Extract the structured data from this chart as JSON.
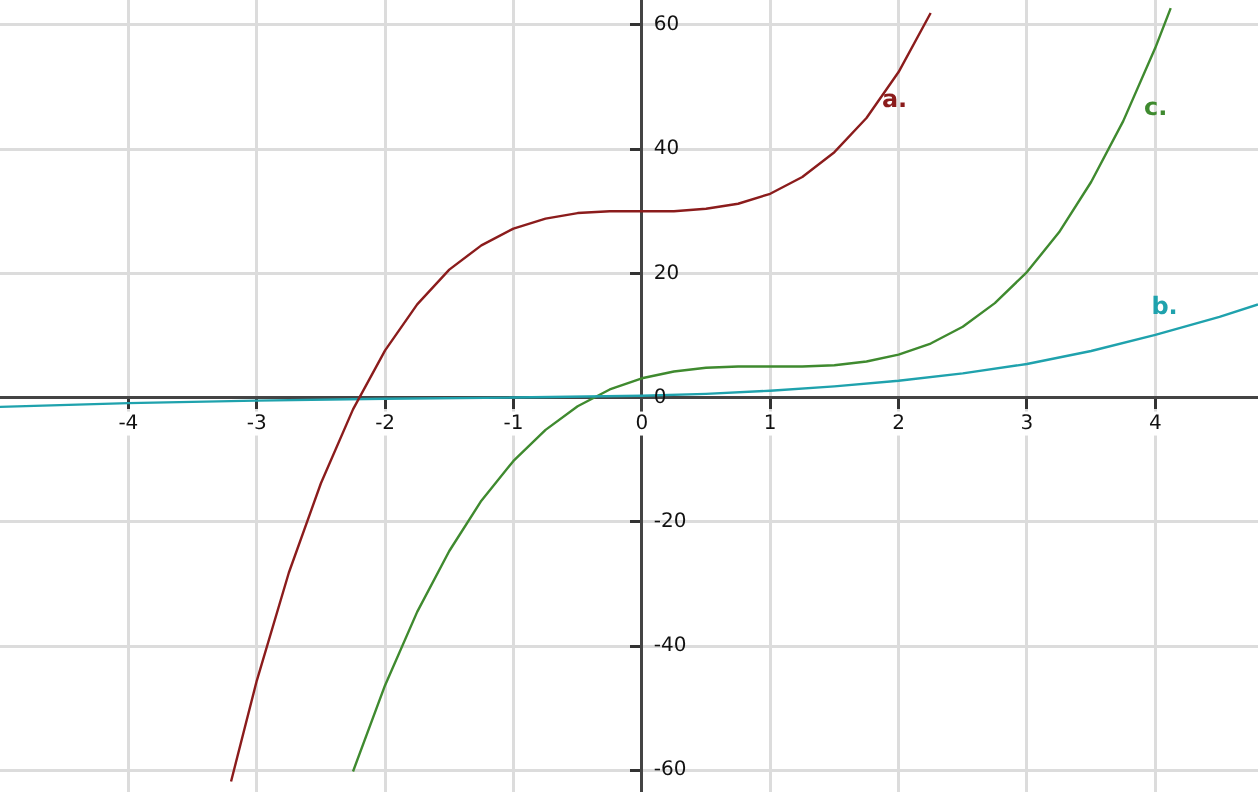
{
  "chart_data": {
    "type": "line",
    "xlim": [
      -5,
      4.8
    ],
    "ylim": [
      -63.5,
      64
    ],
    "xticks": [
      -4,
      -3,
      -2,
      -1,
      0,
      1,
      2,
      3,
      4
    ],
    "yticks": [
      -60,
      -40,
      -20,
      0,
      20,
      40,
      60
    ],
    "grid": true,
    "legend": false,
    "marker": "none",
    "line_style": "solid",
    "series": [
      {
        "name": "a.",
        "color": "#8b1c1c",
        "x": [
          -3.2,
          -3,
          -2.75,
          -2.5,
          -2.25,
          -2,
          -1.75,
          -1.5,
          -1.25,
          -1,
          -0.75,
          -0.5,
          -0.25,
          0,
          0.25,
          0.5,
          0.75,
          1,
          1.25,
          1.5,
          1.75,
          2,
          2.25
        ],
        "values": [
          -61.8,
          -45.6,
          -28.2,
          -13.8,
          -1.9,
          7.6,
          15.0,
          20.6,
          24.5,
          27.2,
          28.8,
          29.7,
          30.0,
          30.0,
          30.0,
          30.4,
          31.2,
          32.8,
          35.5,
          39.5,
          45.0,
          52.4,
          61.9
        ]
      },
      {
        "name": "b.",
        "color": "#1fa2ad",
        "x": [
          -5,
          -4,
          -3,
          -2,
          -1,
          0,
          0.5,
          1,
          1.5,
          2,
          2.5,
          3,
          3.5,
          4,
          4.5,
          4.8
        ],
        "values": [
          -1.5,
          -0.9,
          -0.5,
          -0.2,
          0,
          0.3,
          0.6,
          1.1,
          1.8,
          2.7,
          3.9,
          5.4,
          7.5,
          10.1,
          13,
          15
        ]
      },
      {
        "name": "c.",
        "color": "#3f8a2f",
        "x": [
          -2.25,
          -2,
          -1.75,
          -1.5,
          -1.25,
          -1,
          -0.75,
          -0.5,
          -0.25,
          0,
          0.25,
          0.5,
          0.75,
          1,
          1.25,
          1.5,
          1.75,
          2,
          2.25,
          2.5,
          2.75,
          3,
          3.25,
          3.5,
          3.75,
          4,
          4.12
        ],
        "values": [
          -60.2,
          -46.3,
          -34.5,
          -24.7,
          -16.6,
          -10.2,
          -5.2,
          -1.4,
          1.3,
          3.1,
          4.2,
          4.8,
          5.0,
          5.0,
          5.0,
          5.2,
          5.8,
          6.9,
          8.7,
          11.4,
          15.2,
          20.2,
          26.6,
          34.7,
          44.5,
          56.3,
          62.7
        ]
      }
    ]
  }
}
